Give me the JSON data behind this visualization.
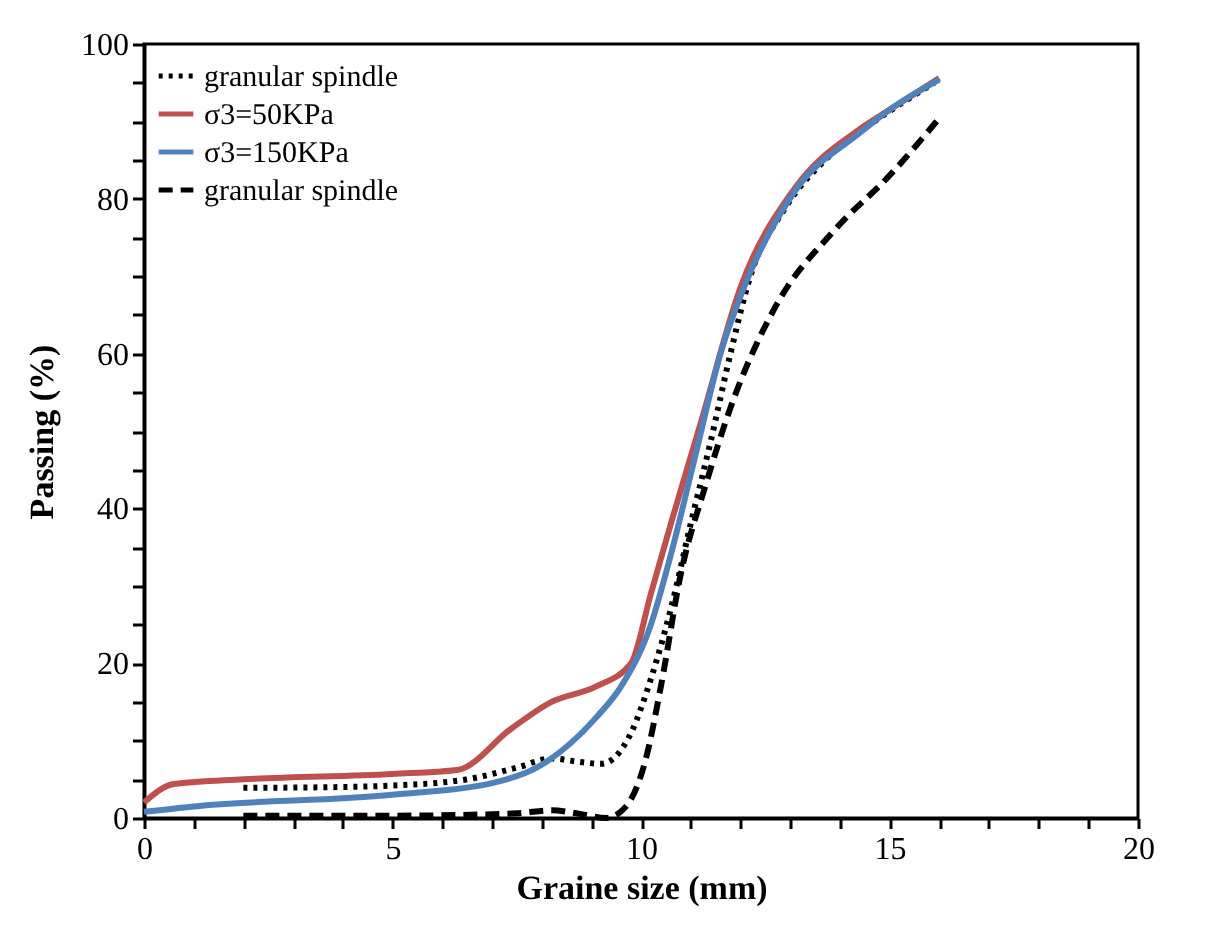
{
  "chart_data": {
    "type": "line",
    "xlabel": "Graine size (mm)",
    "ylabel": "Passing (%)",
    "xlim": [
      0,
      20
    ],
    "ylim": [
      0,
      100
    ],
    "xticks": [
      0,
      {
        "value": 1,
        "label": null
      },
      {
        "value": 2,
        "label": null
      },
      {
        "value": 3,
        "label": null
      },
      {
        "value": 4,
        "label": null
      },
      5,
      {
        "value": 6,
        "label": null
      },
      {
        "value": 7,
        "label": null
      },
      {
        "value": 8,
        "label": null
      },
      {
        "value": 9,
        "label": null
      },
      10,
      {
        "value": 11,
        "label": null
      },
      {
        "value": 12,
        "label": null
      },
      {
        "value": 13,
        "label": null
      },
      {
        "value": 14,
        "label": null
      },
      15,
      {
        "value": 16,
        "label": null
      },
      {
        "value": 17,
        "label": null
      },
      {
        "value": 18,
        "label": null
      },
      {
        "value": 19,
        "label": null
      },
      20
    ],
    "yticks": [
      0,
      {
        "value": 5,
        "label": null
      },
      {
        "value": 10,
        "label": null
      },
      {
        "value": 15,
        "label": null
      },
      20,
      {
        "value": 25,
        "label": null
      },
      {
        "value": 30,
        "label": null
      },
      {
        "value": 35,
        "label": null
      },
      40,
      {
        "value": 45,
        "label": null
      },
      {
        "value": 50,
        "label": null
      },
      {
        "value": 55,
        "label": null
      },
      60,
      {
        "value": 65,
        "label": null
      },
      {
        "value": 70,
        "label": null
      },
      {
        "value": 75,
        "label": null
      },
      80,
      {
        "value": 85,
        "label": null
      },
      {
        "value": 90,
        "label": null
      },
      {
        "value": 95,
        "label": null
      },
      100
    ],
    "grid": false,
    "legend": "top left",
    "marker": "none",
    "series": [
      {
        "name": "granular spindle",
        "color": "#000000",
        "line_style": "dotted",
        "x": [
          2,
          4,
          5,
          6.5,
          7.5,
          8.2,
          8.7,
          9.2,
          9.8,
          10.2,
          10.6,
          11,
          11.4,
          11.8,
          12.2,
          12.9,
          13.8,
          14.7,
          15.9
        ],
        "values": [
          3.9,
          4,
          4.2,
          5,
          6.5,
          7.7,
          7.3,
          7,
          11,
          18,
          27,
          38,
          48.6,
          60,
          70,
          78.8,
          85.6,
          90,
          95
        ]
      },
      {
        "name": "σ3=50KPa",
        "color": "#c0504d",
        "line_style": "solid",
        "x": [
          0,
          0.6,
          2,
          5,
          6.3,
          7.4,
          8.2,
          9.1,
          9.8,
          10.2,
          10.6,
          11.2,
          12,
          13.1,
          14.4,
          15,
          16
        ],
        "values": [
          2,
          4.4,
          5,
          5.7,
          6.2,
          11.6,
          15,
          17,
          20,
          29,
          38,
          51,
          68.5,
          81.4,
          89,
          91.5,
          95.6
        ]
      },
      {
        "name": "σ3=150KPa",
        "color": "#4f81bd",
        "line_style": "solid",
        "x": [
          0,
          1,
          5,
          7,
          7.9,
          9.1,
          9.6,
          10.2,
          10.6,
          11.1,
          11.6,
          12.1,
          13.1,
          14.4,
          15,
          16
        ],
        "values": [
          0.8,
          1.5,
          3,
          4.5,
          6.5,
          13,
          17,
          25,
          34,
          47,
          60,
          69,
          81,
          88.5,
          91.5,
          95.4
        ]
      },
      {
        "name": "granular spindle",
        "color": "#000000",
        "line_style": "dashed",
        "x": [
          2,
          5,
          7.5,
          8.2,
          8.8,
          9.3,
          9.7,
          10.1,
          10.4,
          10.8,
          11.3,
          11.8,
          12.7,
          13.9,
          15,
          16
        ],
        "values": [
          0.3,
          0.3,
          0.6,
          1,
          0.5,
          0,
          1.5,
          7.7,
          17,
          31.5,
          43,
          53,
          66,
          76,
          83,
          90.4
        ]
      }
    ]
  }
}
